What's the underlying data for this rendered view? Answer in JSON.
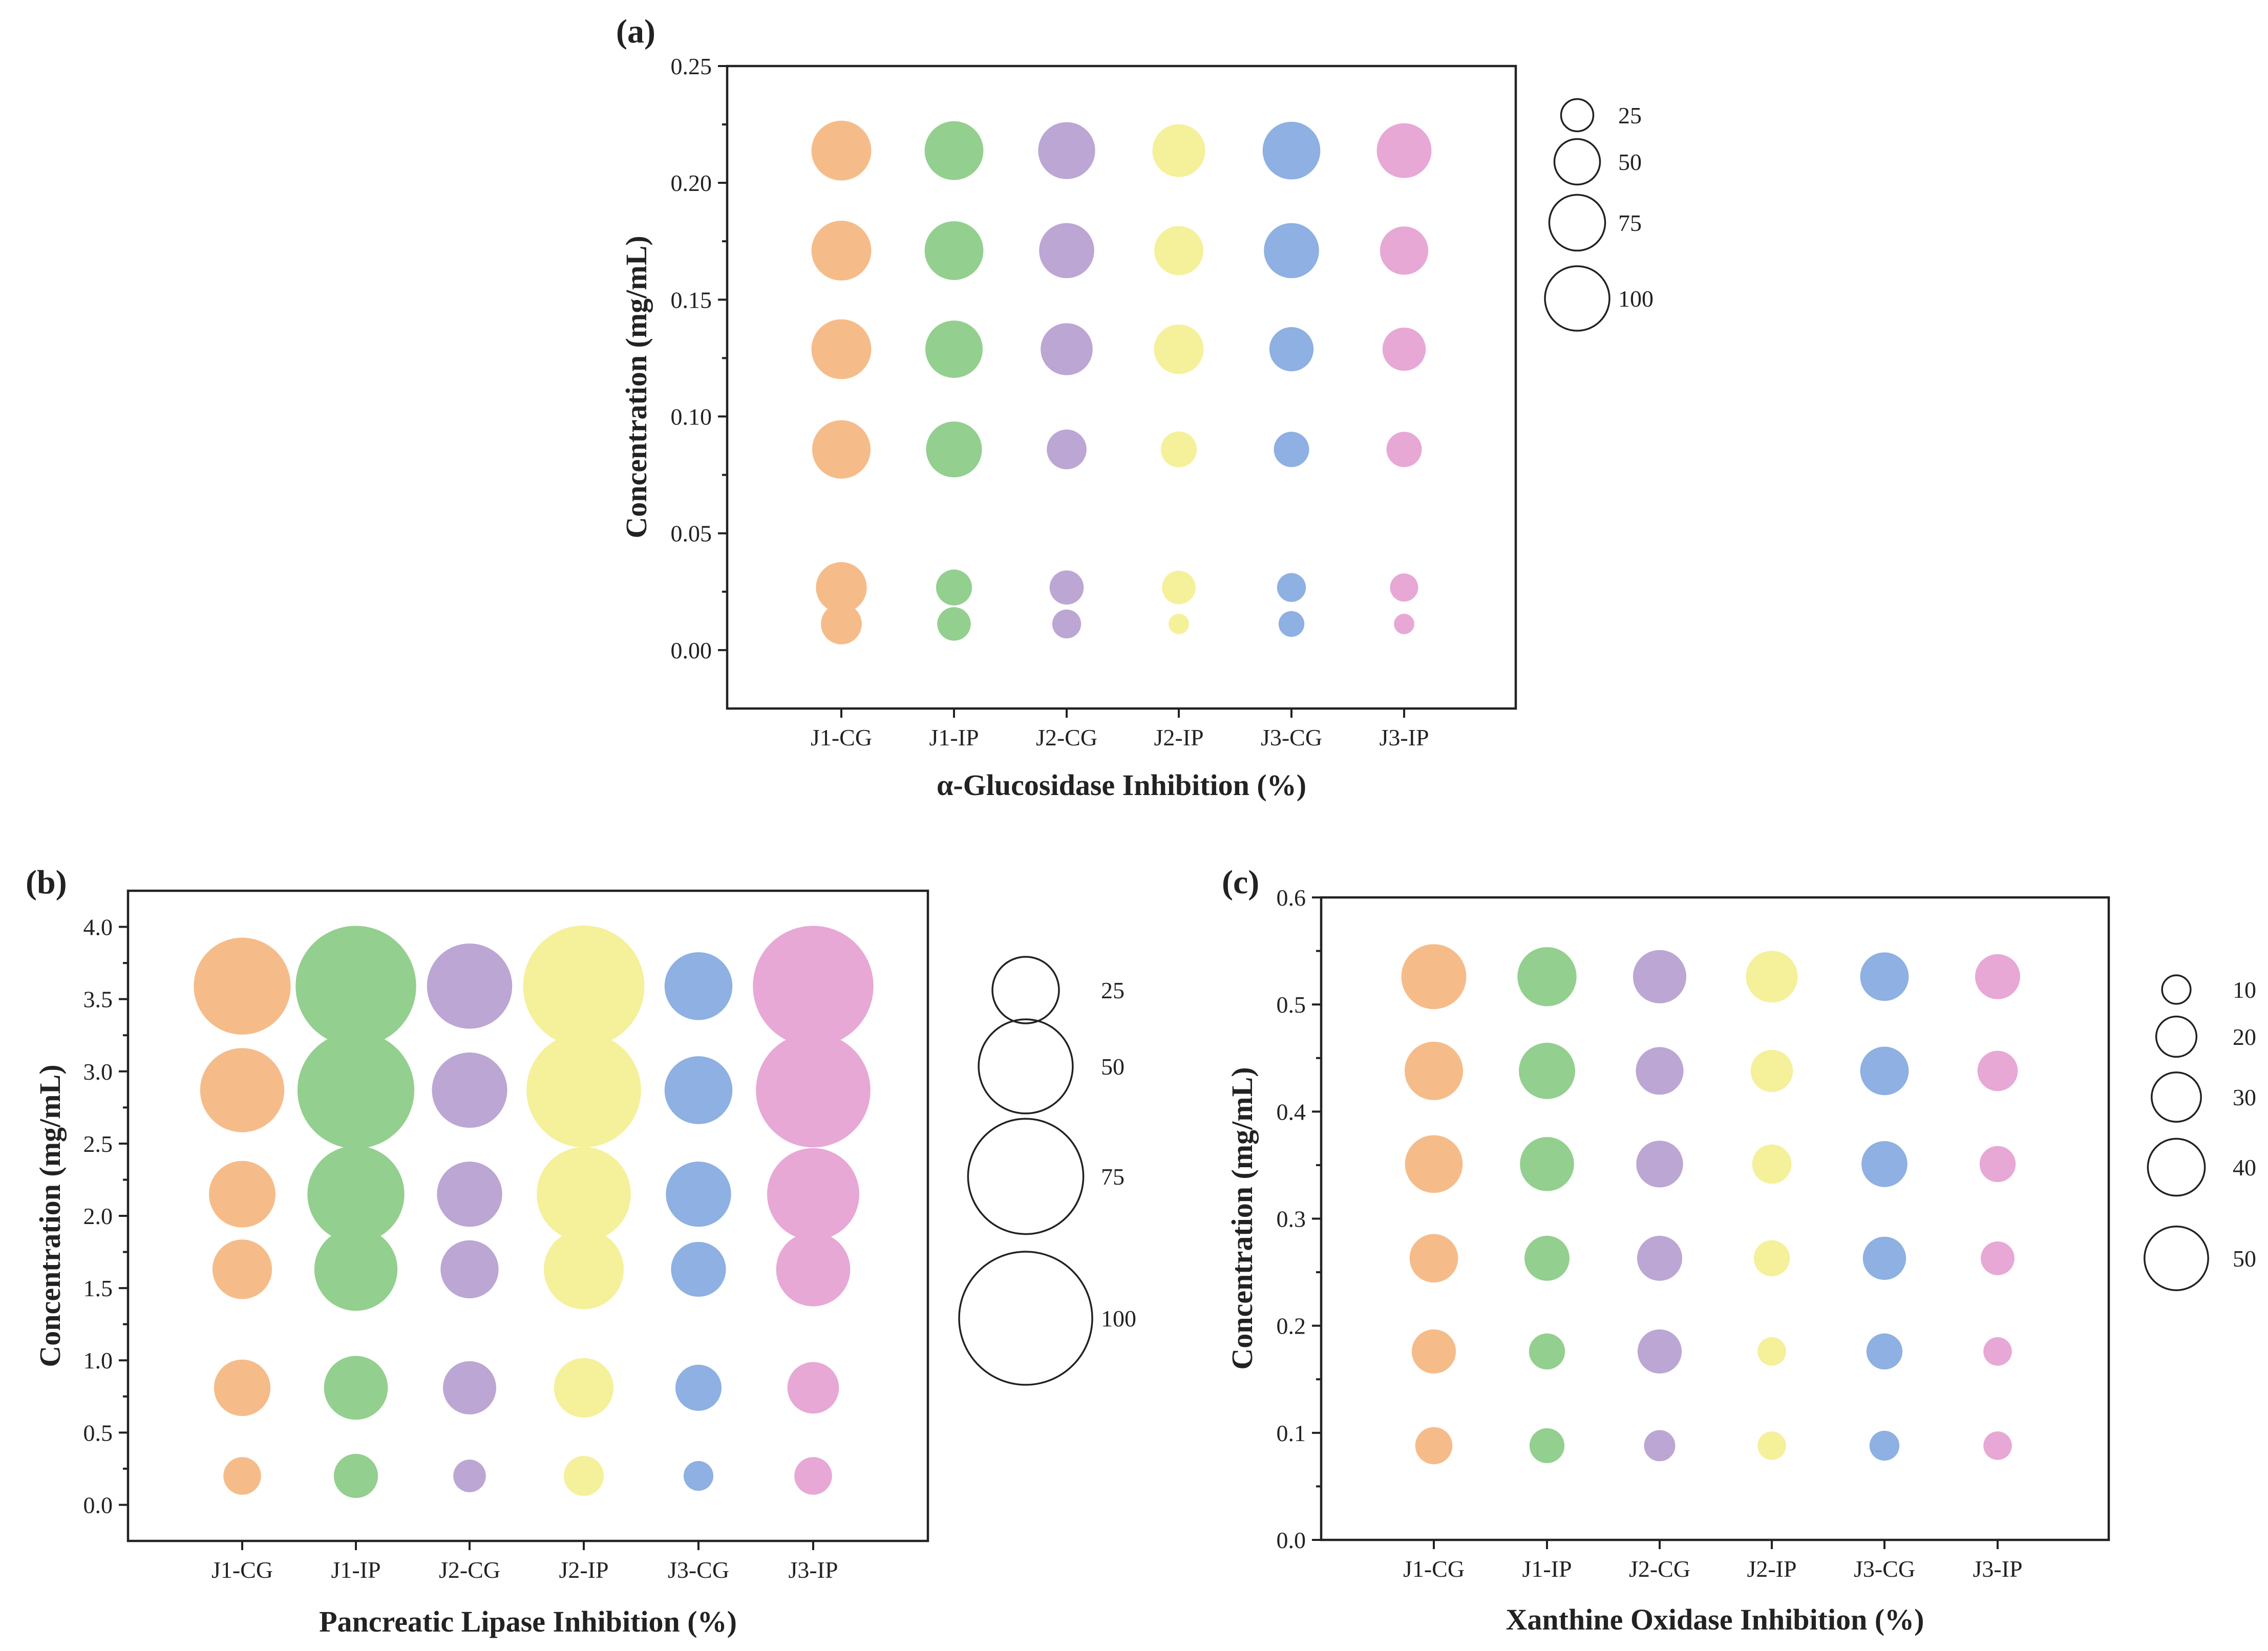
{
  "colors": {
    "J1-CG": "#f5bc8a",
    "J1-IP": "#93cf8e",
    "J2-CG": "#bba6d4",
    "J2-IP": "#f5f09a",
    "J3-CG": "#8eb0e2",
    "J3-IP": "#e7a8d6"
  },
  "chart_data": [
    {
      "type": "scatter",
      "panel_label": "(a)",
      "xlabel": "α-Glucosidase Inhibition (%)",
      "ylabel": "Concentration (mg/mL)",
      "categories": [
        "J1-CG",
        "J1-IP",
        "J2-CG",
        "J2-IP",
        "J3-CG",
        "J3-IP"
      ],
      "concentrations": [
        0.2138,
        0.171,
        0.1288,
        0.0859,
        0.0268,
        0.0112
      ],
      "ylim": [
        -0.025,
        0.25
      ],
      "yticks": [
        0.0,
        0.05,
        0.1,
        0.15,
        0.2,
        0.25
      ],
      "ytick_labels": [
        "0.00",
        "0.05",
        "0.10",
        "0.15",
        "0.20",
        "0.25"
      ],
      "size_legend": {
        "values": [
          25,
          50,
          75,
          100
        ],
        "labels": [
          "25",
          "50",
          "75",
          "100"
        ]
      },
      "series": [
        {
          "name": "J1-CG",
          "values": [
            86,
            86,
            86,
            82,
            62,
            40
          ]
        },
        {
          "name": "J1-IP",
          "values": [
            83,
            83,
            79,
            75,
            31,
            27
          ]
        },
        {
          "name": "J2-CG",
          "values": [
            78,
            73,
            65,
            38,
            28,
            20
          ]
        },
        {
          "name": "J2-IP",
          "values": [
            67,
            58,
            59,
            31,
            27,
            10
          ]
        },
        {
          "name": "J3-CG",
          "values": [
            80,
            73,
            47,
            30,
            20,
            16
          ]
        },
        {
          "name": "J3-IP",
          "values": [
            72,
            56,
            45,
            30,
            19,
            10
          ]
        }
      ]
    },
    {
      "type": "scatter",
      "panel_label": "(b)",
      "xlabel": "Pancreatic Lipase Inhibition (%)",
      "ylabel": "Concentration (mg/mL)",
      "categories": [
        "J1-CG",
        "J1-IP",
        "J2-CG",
        "J2-IP",
        "J3-CG",
        "J3-IP"
      ],
      "concentrations": [
        3.59,
        2.87,
        2.15,
        1.63,
        0.81,
        0.2
      ],
      "ylim": [
        -0.25,
        4.25
      ],
      "yticks": [
        0.0,
        0.5,
        1.0,
        1.5,
        2.0,
        2.5,
        3.0,
        3.5,
        4.0
      ],
      "ytick_labels": [
        "0.0",
        "0.5",
        "1.0",
        "1.5",
        "2.0",
        "2.5",
        "3.0",
        "3.5",
        "4.0"
      ],
      "size_legend": {
        "values": [
          25,
          50,
          75,
          100
        ],
        "labels": [
          "25",
          "50",
          "75",
          "100"
        ]
      },
      "series": [
        {
          "name": "J1-CG",
          "values": [
            53,
            40,
            25,
            20,
            18,
            8
          ]
        },
        {
          "name": "J1-IP",
          "values": [
            82,
            77,
            53,
            39,
            23,
            11
          ]
        },
        {
          "name": "J2-CG",
          "values": [
            41,
            32,
            24,
            19,
            16,
            6
          ]
        },
        {
          "name": "J2-IP",
          "values": [
            83,
            74,
            50,
            36,
            20,
            9
          ]
        },
        {
          "name": "J3-CG",
          "values": [
            26,
            26,
            24,
            17,
            12,
            5
          ]
        },
        {
          "name": "J3-IP",
          "values": [
            82,
            74,
            48,
            31,
            15,
            8
          ]
        }
      ]
    },
    {
      "type": "scatter",
      "panel_label": "(c)",
      "xlabel": "Xanthine Oxidase Inhibition (%)",
      "ylabel": "Concentration (mg/mL)",
      "categories": [
        "J1-CG",
        "J1-IP",
        "J2-CG",
        "J2-IP",
        "J3-CG",
        "J3-IP"
      ],
      "concentrations": [
        0.526,
        0.438,
        0.351,
        0.263,
        0.176,
        0.088
      ],
      "ylim": [
        0,
        0.6
      ],
      "yticks": [
        0.0,
        0.1,
        0.2,
        0.3,
        0.4,
        0.5,
        0.6
      ],
      "ytick_labels": [
        "0.0",
        "0.1",
        "0.2",
        "0.3",
        "0.4",
        "0.5",
        "0.6"
      ],
      "size_legend": {
        "values": [
          10,
          20,
          30,
          40,
          50
        ],
        "labels": [
          "10",
          "20",
          "30",
          "40",
          "50"
        ]
      },
      "series": [
        {
          "name": "J1-CG",
          "values": [
            52,
            42,
            41,
            29,
            24,
            17
          ]
        },
        {
          "name": "J1-IP",
          "values": [
            43,
            39,
            36,
            25,
            16,
            15
          ]
        },
        {
          "name": "J2-CG",
          "values": [
            35,
            28,
            27,
            25,
            24,
            12
          ]
        },
        {
          "name": "J2-IP",
          "values": [
            33,
            22,
            19,
            16,
            10,
            10
          ]
        },
        {
          "name": "J3-CG",
          "values": [
            29,
            29,
            26,
            23,
            16,
            11
          ]
        },
        {
          "name": "J3-IP",
          "values": [
            25,
            20,
            16,
            14,
            10,
            10
          ]
        }
      ]
    }
  ]
}
